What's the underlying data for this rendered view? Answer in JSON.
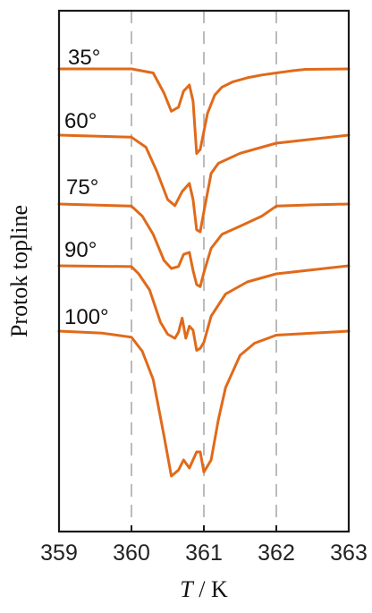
{
  "chart_data": {
    "type": "line",
    "title": "",
    "xlabel_var": "T",
    "xlabel_sep": " / ",
    "xlabel_unit": "K",
    "ylabel": "Protok topline",
    "xlim": [
      359,
      363
    ],
    "xticks": [
      "359",
      "360",
      "361",
      "362",
      "363"
    ],
    "vertical_reference_lines": [
      360,
      361,
      362
    ],
    "grid": false,
    "legend": "none",
    "line_color": "#e06a1a",
    "reference_line_color": "#bbbbbb",
    "y_axis_ticks": false,
    "series": [
      {
        "name": "35°",
        "x": [
          359.0,
          360.0,
          360.3,
          360.45,
          360.55,
          360.65,
          360.72,
          360.8,
          360.85,
          360.9,
          360.95,
          361.05,
          361.15,
          361.25,
          361.4,
          361.6,
          361.8,
          362.0,
          362.2,
          362.4,
          363.0
        ],
        "y": [
          0.0,
          0.0,
          -0.1,
          -0.6,
          -1.05,
          -0.95,
          -0.55,
          -0.4,
          -0.8,
          -2.1,
          -2.0,
          -1.1,
          -0.65,
          -0.45,
          -0.32,
          -0.22,
          -0.15,
          -0.1,
          -0.05,
          -0.01,
          0.0
        ]
      },
      {
        "name": "60°",
        "x": [
          359.0,
          360.0,
          360.2,
          360.35,
          360.5,
          360.6,
          360.7,
          360.8,
          360.85,
          360.9,
          360.95,
          361.0,
          361.1,
          361.2,
          361.5,
          361.8,
          362.0,
          362.5,
          363.0
        ],
        "y": [
          0.0,
          -0.05,
          -0.3,
          -0.9,
          -1.6,
          -1.75,
          -1.4,
          -1.2,
          -1.6,
          -2.35,
          -2.4,
          -1.9,
          -0.95,
          -0.7,
          -0.45,
          -0.3,
          -0.2,
          -0.1,
          0.0
        ]
      },
      {
        "name": "75°",
        "x": [
          359.0,
          360.0,
          360.15,
          360.3,
          360.45,
          360.55,
          360.65,
          360.72,
          360.8,
          360.85,
          360.9,
          360.95,
          361.0,
          361.1,
          361.25,
          361.5,
          361.8,
          362.0,
          362.5,
          363.0
        ],
        "y": [
          0.0,
          -0.05,
          -0.3,
          -0.75,
          -1.4,
          -1.6,
          -1.55,
          -1.25,
          -1.2,
          -1.65,
          -2.0,
          -2.05,
          -1.7,
          -1.1,
          -0.75,
          -0.55,
          -0.3,
          -0.05,
          -0.02,
          0.0
        ]
      },
      {
        "name": "90°",
        "x": [
          359.0,
          360.0,
          360.1,
          360.25,
          360.4,
          360.5,
          360.6,
          360.65,
          360.7,
          360.75,
          360.8,
          360.85,
          360.9,
          360.95,
          361.0,
          361.1,
          361.3,
          361.6,
          362.0,
          362.5,
          363.0
        ],
        "y": [
          0.0,
          -0.02,
          -0.2,
          -0.6,
          -1.4,
          -1.7,
          -1.8,
          -1.65,
          -1.3,
          -1.8,
          -1.5,
          -1.6,
          -2.1,
          -2.05,
          -1.9,
          -1.25,
          -0.7,
          -0.4,
          -0.2,
          -0.1,
          0.0
        ]
      },
      {
        "name": "100°",
        "x": [
          359.0,
          359.6,
          360.0,
          360.15,
          360.3,
          360.45,
          360.55,
          360.65,
          360.72,
          360.8,
          360.9,
          360.95,
          361.0,
          361.1,
          361.2,
          361.3,
          361.5,
          361.7,
          362.0,
          362.5,
          363.0
        ],
        "y": [
          0.0,
          -0.05,
          -0.15,
          -0.5,
          -1.2,
          -2.6,
          -3.6,
          -3.45,
          -3.2,
          -3.4,
          -3.0,
          -3.0,
          -3.5,
          -3.2,
          -2.2,
          -1.4,
          -0.6,
          -0.3,
          -0.1,
          -0.05,
          0.0
        ]
      }
    ]
  }
}
